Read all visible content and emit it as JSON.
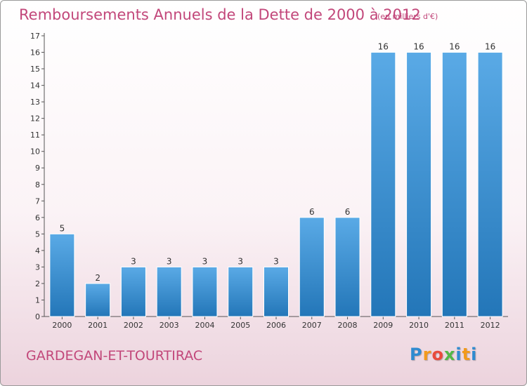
{
  "header": {
    "title": "Remboursements Annuels de la Dette de 2000 à 2012",
    "subtitle": "(en milliers d'€)"
  },
  "footer": {
    "place": "GARDEGAN-ET-TOURTIRAC",
    "logo_text": "Proxiti"
  },
  "colors": {
    "bar_top": "#5aaae6",
    "bar_bottom": "#2376b8",
    "accent": "#c2477a"
  },
  "chart_data": {
    "type": "bar",
    "title": "Remboursements Annuels de la Dette de 2000 à 2012",
    "subtitle": "(en milliers d'€)",
    "categories": [
      "2000",
      "2001",
      "2002",
      "2003",
      "2004",
      "2005",
      "2006",
      "2007",
      "2008",
      "2009",
      "2010",
      "2011",
      "2012"
    ],
    "values": [
      5,
      2,
      3,
      3,
      3,
      3,
      3,
      6,
      6,
      16,
      16,
      16,
      16
    ],
    "data_labels": [
      "5",
      "2",
      "3",
      "3",
      "3",
      "3",
      "3",
      "6",
      "6",
      "16",
      "16",
      "16",
      "16"
    ],
    "ylim": [
      0,
      17
    ],
    "yticks": [
      0,
      1,
      2,
      3,
      4,
      5,
      6,
      7,
      8,
      9,
      10,
      11,
      12,
      13,
      14,
      15,
      16,
      17
    ],
    "grid": false,
    "legend": "none"
  }
}
